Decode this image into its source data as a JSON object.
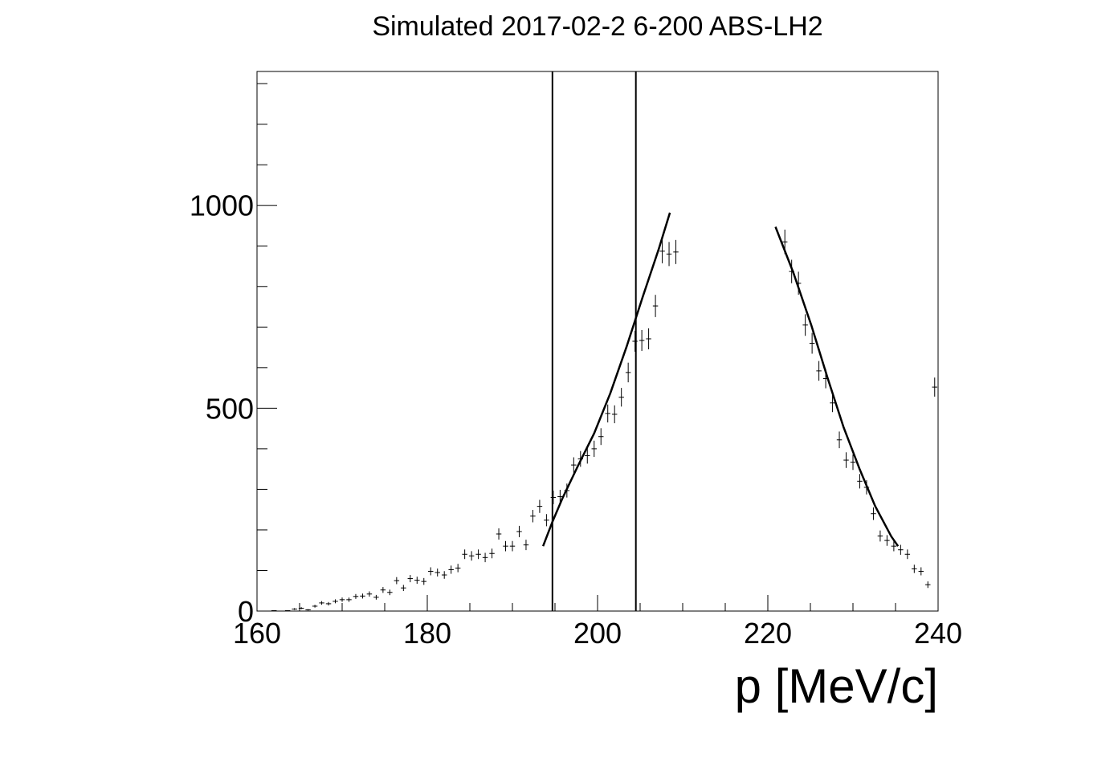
{
  "chart_data": {
    "type": "histogram",
    "title": "Simulated 2017-02-2 6-200 ABS-LH2",
    "x_label": "p [MeV/c]",
    "bins": [
      160,
      160.8,
      161.6,
      162.4,
      163.2,
      164,
      164.8,
      165.6,
      166.4,
      167.2,
      168,
      168.8,
      169.6,
      170.4,
      171.2,
      172,
      172.8,
      173.6,
      174.4,
      175.2,
      176,
      176.8,
      177.6,
      178.4,
      179.2,
      180,
      180.8,
      181.6,
      182.4,
      183.2,
      184,
      184.8,
      185.6,
      186.4,
      187.2,
      188,
      188.8,
      189.6,
      190.4,
      191.2,
      192,
      192.8,
      193.6,
      194.4,
      195.2,
      196,
      196.8,
      197.6,
      198.4,
      199.2,
      200,
      200.8,
      201.6,
      202.4,
      203.2,
      204,
      204.8,
      205.6,
      206.4,
      207.2,
      208,
      208.8,
      209.6,
      210.4,
      211.2,
      212,
      212.8,
      213.6,
      214.4,
      215.2,
      216,
      216.8,
      217.6,
      218.4,
      219.2,
      220,
      220.8,
      221.6,
      222.4,
      223.2,
      224,
      224.8,
      225.6,
      226.4,
      227.2,
      228,
      228.8,
      229.6,
      230.4,
      231.2,
      232,
      232.8,
      233.6,
      234.4,
      235.2,
      236,
      236.8,
      237.6,
      238.4,
      239.2,
      240
    ],
    "values": [
      0,
      0,
      1,
      0,
      1,
      5,
      7,
      3,
      12,
      20,
      18,
      24,
      28,
      28,
      36,
      37,
      42,
      34,
      52,
      46,
      75,
      57,
      80,
      76,
      73,
      98,
      95,
      89,
      102,
      106,
      140,
      136,
      140,
      132,
      142,
      190,
      160,
      160,
      196,
      163,
      234,
      258,
      224,
      280,
      282,
      297,
      360,
      375,
      383,
      400,
      430,
      487,
      485,
      527,
      588,
      665,
      667,
      671,
      752,
      887,
      880,
      885,
      null,
      null,
      null,
      null,
      null,
      null,
      null,
      null,
      null,
      null,
      null,
      null,
      null,
      null,
      null,
      910,
      837,
      808,
      705,
      660,
      592,
      573,
      513,
      422,
      372,
      367,
      320,
      305,
      240,
      185,
      174,
      160,
      151,
      140,
      104,
      98,
      65,
      552
    ],
    "errors": [
      0,
      0,
      1,
      0,
      1,
      2.2,
      2.6,
      1.7,
      3.5,
      4.5,
      4.2,
      4.9,
      5.3,
      5.3,
      6,
      6.1,
      6.5,
      5.8,
      7.2,
      6.8,
      8.7,
      7.5,
      8.9,
      8.7,
      8.5,
      9.9,
      9.7,
      9.4,
      10.1,
      10.3,
      11.8,
      11.7,
      11.8,
      11.5,
      11.9,
      13.8,
      12.6,
      12.6,
      14,
      12.8,
      15.3,
      16.1,
      15,
      16.7,
      16.8,
      17.2,
      19,
      19.4,
      19.6,
      20,
      20.7,
      22.1,
      22,
      23,
      24.2,
      25.8,
      25.8,
      25.9,
      27.4,
      29.8,
      29.7,
      29.7,
      null,
      null,
      null,
      null,
      null,
      null,
      null,
      null,
      null,
      null,
      null,
      null,
      null,
      null,
      null,
      30.2,
      28.9,
      28.4,
      26.6,
      25.7,
      24.3,
      23.9,
      22.6,
      20.5,
      19.3,
      19.2,
      17.9,
      17.5,
      15.5,
      13.6,
      13.2,
      12.6,
      12.3,
      11.8,
      10.2,
      9.9,
      8.1,
      23.5
    ],
    "color": "#000000",
    "fits": [
      {
        "x": [
          193.6,
          194.7,
          195.9,
          197.7,
          199.6,
          201.5,
          203.4,
          205.3,
          207.2,
          208.5
        ],
        "y": [
          160,
          220,
          279,
          358,
          438,
          537,
          651,
          774,
          893,
          982
        ]
      },
      {
        "x": [
          220.9,
          223.0,
          225.1,
          227.0,
          228.9,
          230.8,
          232.6,
          234.5,
          235.3
        ],
        "y": [
          947,
          834,
          705,
          576,
          453,
          349,
          259,
          184,
          160
        ]
      }
    ],
    "cut_lines": [
      194.7,
      204.5
    ],
    "xlim": [
      160,
      240
    ],
    "xticks": [
      160,
      180,
      200,
      220,
      240
    ],
    "x_minor_ticks": [
      165,
      170,
      175,
      185,
      190,
      195,
      205,
      210,
      215,
      225,
      230,
      235
    ],
    "ylim": [
      0,
      1330
    ],
    "yticks": [
      0,
      500,
      1000
    ],
    "y_minor_ticks": [
      100,
      200,
      300,
      400,
      600,
      700,
      800,
      900,
      1100,
      1200,
      1300
    ]
  }
}
